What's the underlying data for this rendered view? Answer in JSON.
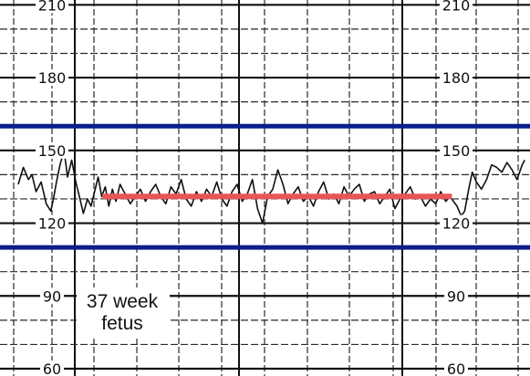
{
  "chart_data": {
    "type": "line",
    "title": "",
    "xlabel": "",
    "ylabel": "",
    "ylim": [
      57,
      212
    ],
    "y_ticks": [
      60,
      90,
      120,
      150,
      180,
      210
    ],
    "tick_labels": {
      "left": [
        "60",
        "90",
        "120",
        "150",
        "180",
        "210"
      ],
      "right": [
        "60",
        "90",
        "120",
        "150",
        "180",
        "210"
      ]
    },
    "grid": true,
    "annotation": [
      "37 week",
      "fetus"
    ],
    "reference_lines": [
      {
        "value": 160,
        "color": "#0a1e8c"
      },
      {
        "value": 110,
        "color": "#0a1e8c"
      }
    ],
    "baseline": {
      "value": 131,
      "x_start": 16.5,
      "x_end": 85.2,
      "color": "#e85555"
    },
    "series": [
      {
        "color": "#111111",
        "x": [
          0,
          1,
          2,
          2.7,
          3.5,
          4.5,
          5.5,
          6.4,
          7,
          7.5,
          8.2,
          9,
          9.7,
          10.5,
          11.3,
          12,
          12.8,
          13.6,
          14.3,
          15,
          15.7,
          16.4,
          17.1,
          17.8,
          18.5,
          19.2,
          20,
          21,
          22,
          23,
          24,
          25,
          26,
          27,
          28,
          29,
          30,
          31,
          32,
          33,
          34,
          35,
          36,
          37,
          38,
          39,
          40,
          41,
          42,
          43,
          44,
          45,
          46,
          47,
          48,
          49,
          50,
          51,
          52,
          53,
          54,
          55,
          56,
          57,
          58,
          59,
          60,
          61,
          62,
          63,
          64,
          65,
          66,
          67,
          68,
          69,
          70,
          71,
          72,
          73,
          74,
          75,
          76,
          77,
          78,
          79,
          80,
          81,
          82,
          83,
          84,
          84.8,
          85.5,
          86.2,
          87,
          87.7,
          88.5,
          89.2,
          90,
          91,
          92,
          93,
          94,
          95,
          96,
          97,
          98,
          99,
          99.5
        ],
        "y": [
          136,
          143,
          138,
          140,
          133,
          137,
          128,
          125,
          131,
          137,
          144,
          150,
          139,
          146,
          137,
          131,
          124,
          130,
          127,
          133,
          139,
          131,
          135,
          127,
          134,
          129,
          136,
          132,
          128,
          131,
          134,
          129,
          133,
          136,
          131,
          128,
          135,
          132,
          138,
          130,
          127,
          133,
          129,
          134,
          131,
          137,
          130,
          127,
          133,
          136,
          129,
          132,
          138,
          126,
          120,
          131,
          134,
          142,
          136,
          128,
          132,
          135,
          129,
          131,
          127,
          133,
          137,
          130,
          132,
          128,
          135,
          131,
          134,
          136,
          129,
          132,
          133,
          128,
          131,
          134,
          126,
          130,
          132,
          135,
          130,
          131,
          127,
          130,
          128,
          133,
          129,
          131,
          129,
          127,
          123,
          125,
          134,
          141,
          137,
          134,
          138,
          144,
          143,
          141,
          145,
          142,
          138,
          144,
          146
        ]
      }
    ]
  }
}
